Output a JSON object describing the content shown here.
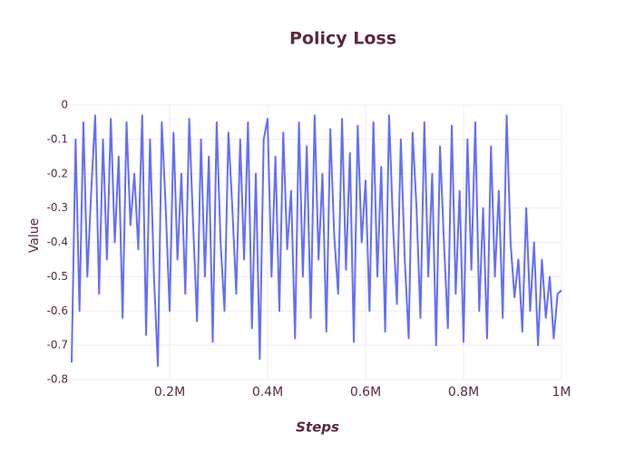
{
  "chart_data": {
    "type": "line",
    "title": "Policy Loss",
    "xlabel": "Steps",
    "ylabel": "Value",
    "color": "#636efa",
    "grid": true,
    "xlim": [
      0,
      1000000
    ],
    "ylim": [
      -0.8,
      0
    ],
    "xticks": [
      {
        "value": 200000,
        "label": "0.2M"
      },
      {
        "value": 400000,
        "label": "0.4M"
      },
      {
        "value": 600000,
        "label": "0.6M"
      },
      {
        "value": 800000,
        "label": "0.8M"
      },
      {
        "value": 1000000,
        "label": "1M"
      }
    ],
    "yticks": [
      0,
      -0.1,
      -0.2,
      -0.3,
      -0.4,
      -0.5,
      -0.6,
      -0.7,
      -0.8
    ],
    "x": [
      0,
      8000,
      16000,
      24000,
      32000,
      40000,
      48000,
      56000,
      64000,
      72000,
      80000,
      88000,
      96000,
      104000,
      112000,
      120000,
      128000,
      136000,
      144000,
      152000,
      160000,
      168000,
      176000,
      184000,
      192000,
      200000,
      208000,
      216000,
      224000,
      232000,
      240000,
      248000,
      256000,
      264000,
      272000,
      280000,
      288000,
      296000,
      304000,
      312000,
      320000,
      328000,
      336000,
      344000,
      352000,
      360000,
      368000,
      376000,
      384000,
      392000,
      400000,
      408000,
      416000,
      424000,
      432000,
      440000,
      448000,
      456000,
      464000,
      472000,
      480000,
      488000,
      496000,
      504000,
      512000,
      520000,
      528000,
      536000,
      544000,
      552000,
      560000,
      568000,
      576000,
      584000,
      592000,
      600000,
      608000,
      616000,
      624000,
      632000,
      640000,
      648000,
      656000,
      664000,
      672000,
      680000,
      688000,
      696000,
      704000,
      712000,
      720000,
      728000,
      736000,
      744000,
      752000,
      760000,
      768000,
      776000,
      784000,
      792000,
      800000,
      808000,
      816000,
      824000,
      832000,
      840000,
      848000,
      856000,
      864000,
      872000,
      880000,
      888000,
      896000,
      904000,
      912000,
      920000,
      928000,
      936000,
      944000,
      952000,
      960000,
      968000,
      976000,
      984000,
      992000,
      1000000
    ],
    "values": [
      -0.75,
      -0.1,
      -0.6,
      -0.05,
      -0.5,
      -0.25,
      -0.03,
      -0.55,
      -0.1,
      -0.45,
      -0.04,
      -0.4,
      -0.15,
      -0.62,
      -0.05,
      -0.35,
      -0.2,
      -0.42,
      -0.03,
      -0.67,
      -0.1,
      -0.5,
      -0.76,
      -0.05,
      -0.3,
      -0.6,
      -0.08,
      -0.45,
      -0.2,
      -0.55,
      -0.04,
      -0.35,
      -0.63,
      -0.1,
      -0.5,
      -0.15,
      -0.69,
      -0.05,
      -0.4,
      -0.6,
      -0.08,
      -0.3,
      -0.55,
      -0.1,
      -0.45,
      -0.05,
      -0.65,
      -0.2,
      -0.74,
      -0.1,
      -0.04,
      -0.5,
      -0.15,
      -0.6,
      -0.08,
      -0.42,
      -0.25,
      -0.68,
      -0.05,
      -0.5,
      -0.12,
      -0.62,
      -0.03,
      -0.45,
      -0.2,
      -0.66,
      -0.07,
      -0.38,
      -0.55,
      -0.04,
      -0.48,
      -0.14,
      -0.69,
      -0.06,
      -0.4,
      -0.22,
      -0.6,
      -0.05,
      -0.5,
      -0.18,
      -0.66,
      -0.03,
      -0.35,
      -0.58,
      -0.1,
      -0.45,
      -0.68,
      -0.08,
      -0.3,
      -0.62,
      -0.05,
      -0.5,
      -0.2,
      -0.7,
      -0.12,
      -0.4,
      -0.65,
      -0.06,
      -0.55,
      -0.25,
      -0.69,
      -0.1,
      -0.48,
      -0.05,
      -0.6,
      -0.3,
      -0.68,
      -0.12,
      -0.5,
      -0.25,
      -0.62,
      -0.03,
      -0.4,
      -0.56,
      -0.45,
      -0.66,
      -0.3,
      -0.6,
      -0.4,
      -0.7,
      -0.45,
      -0.62,
      -0.5,
      -0.68,
      -0.55,
      -0.54
    ]
  }
}
